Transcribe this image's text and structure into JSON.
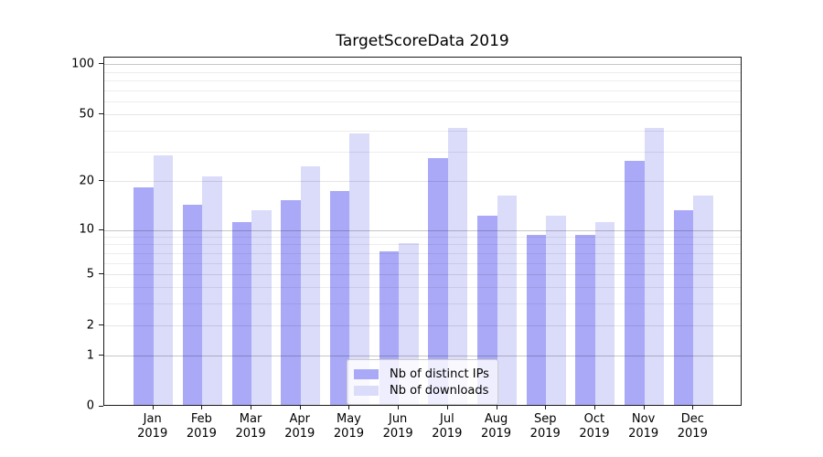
{
  "chart_data": {
    "type": "bar",
    "title": "TargetScoreData 2019",
    "categories": [
      "Jan",
      "Feb",
      "Mar",
      "Apr",
      "May",
      "Jun",
      "Jul",
      "Aug",
      "Sep",
      "Oct",
      "Nov",
      "Dec"
    ],
    "year_label": "2019",
    "series": [
      {
        "name": "Nb of distinct IPs",
        "color": "#a9a9f8",
        "values": [
          18,
          14,
          11,
          15,
          17,
          7,
          27,
          12,
          9,
          9,
          26,
          13
        ]
      },
      {
        "name": "Nb of downloads",
        "color": "#dbdbfa",
        "values": [
          28,
          21,
          13,
          24,
          38,
          8,
          41,
          16,
          12,
          11,
          41,
          16
        ]
      }
    ],
    "xlabel": "",
    "ylabel": "",
    "yticks": [
      0,
      1,
      2,
      5,
      10,
      20,
      50,
      100
    ],
    "ylim": [
      0,
      110
    ],
    "yscale": "symlog",
    "grid": "horizontal, log minor gridlines, darker lines at 1/10/100, drawn over bars",
    "legend_position": "lower center",
    "bar_width_fraction": 0.4
  }
}
